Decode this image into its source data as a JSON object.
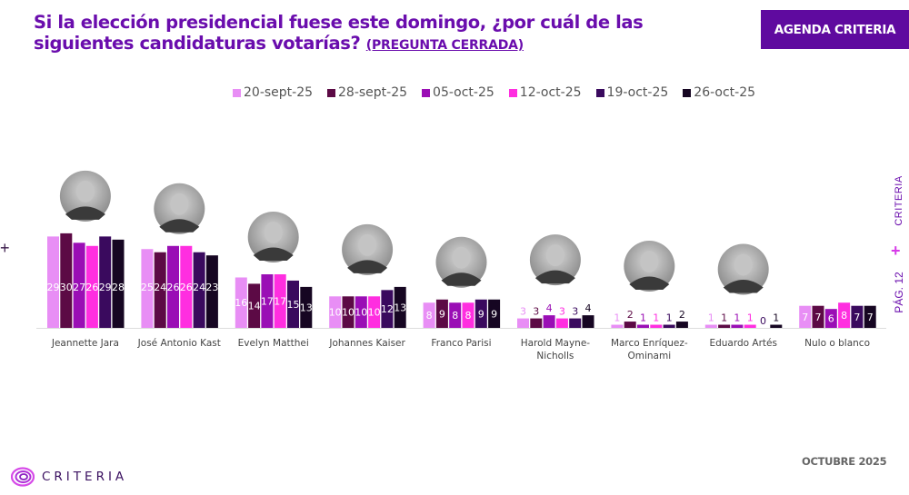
{
  "header": {
    "title": "Si la elección presidencial fuese este domingo, ¿por cuál de las siguientes candidaturas votarías?",
    "title_suffix": "(PREGUNTA CERRADA)",
    "badge": "AGENDA CRITERIA"
  },
  "side": {
    "brand": "CRITERIA",
    "plus": "+",
    "page": "PÁG. 12"
  },
  "footer": {
    "logo_text": "CRITERIA",
    "date": "OCTUBRE 2025"
  },
  "left_marker": "+",
  "chart_data": {
    "type": "bar",
    "title": "Si la elección presidencial fuese este domingo, ¿por cuál de las siguientes candidaturas votarías? (PREGUNTA CERRADA)",
    "xlabel": "",
    "ylabel": "",
    "ylim": [
      0,
      30
    ],
    "grid": false,
    "legend_position": "top",
    "categories": [
      "Jeannette Jara",
      "José Antonio Kast",
      "Evelyn Matthei",
      "Johannes Kaiser",
      "Franco Parisi",
      "Harold Mayne-Nicholls",
      "Marco Enríquez-Ominami",
      "Eduardo Artés",
      "Nulo o blanco"
    ],
    "category_photos": [
      "candidate-photo",
      "candidate-photo",
      "candidate-photo",
      "candidate-photo",
      "candidate-photo",
      "candidate-photo",
      "candidate-photo",
      "candidate-photo",
      null
    ],
    "series": [
      {
        "name": "20-sept-25",
        "color": "#e88ef5",
        "values": [
          29,
          25,
          16,
          10,
          8,
          3,
          1,
          1,
          7
        ]
      },
      {
        "name": "28-sept-25",
        "color": "#5c0a45",
        "values": [
          30,
          24,
          14,
          10,
          9,
          3,
          2,
          1,
          7
        ]
      },
      {
        "name": "05-oct-25",
        "color": "#9a0eb5",
        "values": [
          27,
          26,
          17,
          10,
          8,
          4,
          1,
          1,
          6
        ]
      },
      {
        "name": "12-oct-25",
        "color": "#ff2ee0",
        "values": [
          26,
          26,
          17,
          10,
          8,
          3,
          1,
          1,
          8
        ]
      },
      {
        "name": "19-oct-25",
        "color": "#3a0a5e",
        "values": [
          29,
          24,
          15,
          12,
          9,
          3,
          1,
          0,
          7
        ]
      },
      {
        "name": "26-oct-25",
        "color": "#160622",
        "values": [
          28,
          23,
          13,
          13,
          9,
          4,
          2,
          1,
          7
        ]
      }
    ]
  }
}
